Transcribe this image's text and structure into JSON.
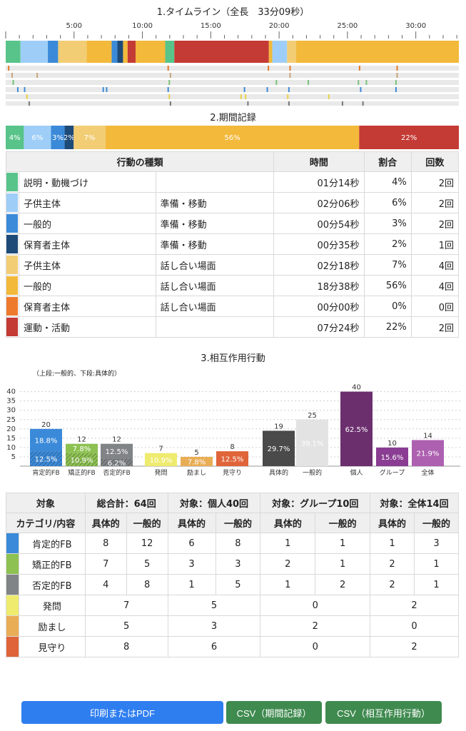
{
  "timeline": {
    "title": "1.タイムライン（全長　33分09秒）",
    "tick_labels": [
      "5:00",
      "10:00",
      "15:00",
      "20:00",
      "25:00",
      "30:00"
    ],
    "total_seconds": 1989,
    "segments": [
      {
        "start": 0,
        "end": 65,
        "color": "#58c48a"
      },
      {
        "start": 65,
        "end": 185,
        "color": "#9ecef7"
      },
      {
        "start": 185,
        "end": 230,
        "color": "#3b8ad9"
      },
      {
        "start": 230,
        "end": 355,
        "color": "#f2cd74"
      },
      {
        "start": 355,
        "end": 465,
        "color": "#f2b93b"
      },
      {
        "start": 465,
        "end": 490,
        "color": "#3b8ad9"
      },
      {
        "start": 490,
        "end": 515,
        "color": "#1e4a78"
      },
      {
        "start": 515,
        "end": 535,
        "color": "#f2b93b"
      },
      {
        "start": 535,
        "end": 570,
        "color": "#c43a35"
      },
      {
        "start": 570,
        "end": 700,
        "color": "#f2b93b"
      },
      {
        "start": 700,
        "end": 740,
        "color": "#58c48a"
      },
      {
        "start": 740,
        "end": 1155,
        "color": "#c43a35"
      },
      {
        "start": 1155,
        "end": 1170,
        "color": "#f2b93b"
      },
      {
        "start": 1170,
        "end": 1235,
        "color": "#9ecef7"
      },
      {
        "start": 1235,
        "end": 1275,
        "color": "#f2cd74"
      },
      {
        "start": 1275,
        "end": 1989,
        "color": "#f2b93b"
      }
    ],
    "event_rows": [
      {
        "marks": [
          {
            "t": 10,
            "color": "#e07b2a"
          },
          {
            "t": 710,
            "color": "#e07b2a"
          },
          {
            "t": 1150,
            "color": "#e07b2a"
          },
          {
            "t": 1245,
            "color": "#e07b2a"
          },
          {
            "t": 1550,
            "color": "#e07b2a"
          },
          {
            "t": 1715,
            "color": "#e07b2a"
          }
        ]
      },
      {
        "marks": [
          {
            "t": 25,
            "color": "#c8a47a"
          },
          {
            "t": 135,
            "color": "#c8a47a"
          },
          {
            "t": 720,
            "color": "#c8a47a"
          },
          {
            "t": 1245,
            "color": "#c8a47a"
          },
          {
            "t": 1715,
            "color": "#c8a47a"
          }
        ]
      },
      {
        "marks": [
          {
            "t": 30,
            "color": "#7ac27a"
          },
          {
            "t": 715,
            "color": "#7ac27a"
          },
          {
            "t": 1185,
            "color": "#7ac27a"
          },
          {
            "t": 1325,
            "color": "#7ac27a"
          },
          {
            "t": 1545,
            "color": "#7ac27a"
          },
          {
            "t": 1580,
            "color": "#7ac27a"
          },
          {
            "t": 1710,
            "color": "#7ac27a"
          }
        ]
      },
      {
        "marks": [
          {
            "t": 50,
            "color": "#3b8ad9"
          },
          {
            "t": 80,
            "color": "#3b8ad9"
          },
          {
            "t": 425,
            "color": "#3b8ad9"
          },
          {
            "t": 440,
            "color": "#3b8ad9"
          },
          {
            "t": 710,
            "color": "#3b8ad9"
          },
          {
            "t": 1045,
            "color": "#3b8ad9"
          },
          {
            "t": 1145,
            "color": "#3b8ad9"
          },
          {
            "t": 1240,
            "color": "#3b8ad9"
          },
          {
            "t": 1555,
            "color": "#3b8ad9"
          },
          {
            "t": 1710,
            "color": "#3b8ad9"
          }
        ]
      },
      {
        "marks": [
          {
            "t": 90,
            "color": "#e8d04a"
          },
          {
            "t": 715,
            "color": "#e8d04a"
          },
          {
            "t": 1030,
            "color": "#e8d04a"
          },
          {
            "t": 1050,
            "color": "#e8d04a"
          },
          {
            "t": 1235,
            "color": "#e8d04a"
          },
          {
            "t": 1415,
            "color": "#e8d04a"
          }
        ]
      },
      {
        "marks": [
          {
            "t": 100,
            "color": "#777777"
          },
          {
            "t": 720,
            "color": "#777777"
          },
          {
            "t": 1060,
            "color": "#777777"
          },
          {
            "t": 1240,
            "color": "#777777"
          },
          {
            "t": 1475,
            "color": "#777777"
          },
          {
            "t": 1565,
            "color": "#777777"
          }
        ]
      }
    ]
  },
  "period": {
    "title": "2.期間記録",
    "bar": [
      {
        "pct": 4,
        "label": "4%",
        "color": "#58c48a"
      },
      {
        "pct": 6,
        "label": "6%",
        "color": "#9ecef7"
      },
      {
        "pct": 3,
        "label": "3%",
        "color": "#3b8ad9"
      },
      {
        "pct": 2,
        "label": "2%",
        "color": "#1e4a78"
      },
      {
        "pct": 7,
        "label": "7%",
        "color": "#f2cd74"
      },
      {
        "pct": 56,
        "label": "56%",
        "color": "#f2b93b"
      },
      {
        "pct": 0,
        "label": "",
        "color": "#ee7a2e"
      },
      {
        "pct": 22,
        "label": "22%",
        "color": "#c43a35"
      }
    ],
    "headers": {
      "type": "行動の種類",
      "time": "時間",
      "ratio": "割合",
      "count": "回数"
    },
    "rows": [
      {
        "color": "#58c48a",
        "name": "説明・動機づけ",
        "scene": "",
        "time": "01分14秒",
        "ratio": "4%",
        "count": "2回"
      },
      {
        "color": "#9ecef7",
        "name": "子供主体",
        "scene": "準備・移動",
        "time": "02分06秒",
        "ratio": "6%",
        "count": "2回"
      },
      {
        "color": "#3b8ad9",
        "name": "一般的",
        "scene": "準備・移動",
        "time": "00分54秒",
        "ratio": "3%",
        "count": "2回"
      },
      {
        "color": "#1e4a78",
        "name": "保育者主体",
        "scene": "準備・移動",
        "time": "00分35秒",
        "ratio": "2%",
        "count": "1回"
      },
      {
        "color": "#f2cd74",
        "name": "子供主体",
        "scene": "話し合い場面",
        "time": "02分18秒",
        "ratio": "7%",
        "count": "4回"
      },
      {
        "color": "#f2b93b",
        "name": "一般的",
        "scene": "話し合い場面",
        "time": "18分38秒",
        "ratio": "56%",
        "count": "4回"
      },
      {
        "color": "#ee7a2e",
        "name": "保育者主体",
        "scene": "話し合い場面",
        "time": "00分00秒",
        "ratio": "0%",
        "count": "0回"
      },
      {
        "color": "#c43a35",
        "name": "運動・活動",
        "scene": "",
        "time": "07分24秒",
        "ratio": "22%",
        "count": "2回"
      }
    ]
  },
  "interaction": {
    "title": "3.相互作用行動",
    "note": "（上段:一般的、下段:具体的）"
  },
  "chart_data": {
    "type": "bar",
    "ylim": [
      0,
      40
    ],
    "yticks": [
      5,
      10,
      15,
      20,
      25,
      30,
      35,
      40
    ],
    "categories": [
      "肯定的FB",
      "矯正的FB",
      "否定的FB",
      "発問",
      "励まし",
      "見守り",
      "具体的",
      "一般的",
      "個人",
      "グループ",
      "全体"
    ],
    "series": [
      {
        "values": [
          20,
          12,
          12,
          7,
          5,
          8,
          19,
          25,
          40,
          10,
          14
        ]
      }
    ],
    "bars": [
      {
        "cat": "肯定的FB",
        "total": 20,
        "color": "#3b8ad9",
        "stack": {
          "bottom": 8,
          "top": 12,
          "bottom_label": "12.5%",
          "top_label": "18.8%"
        }
      },
      {
        "cat": "矯正的FB",
        "total": 12,
        "color": "#8dc152",
        "stack": {
          "bottom": 7,
          "top": 5,
          "bottom_label": "10.9%",
          "top_label": "7.8%"
        }
      },
      {
        "cat": "否定的FB",
        "total": 12,
        "color": "#808487",
        "stack": {
          "bottom": 4,
          "top": 8,
          "bottom_label": "6.2%",
          "top_label": "12.5%"
        }
      },
      {
        "cat": "発問",
        "total": 7,
        "color": "#eeeb6f",
        "label": "10.9%"
      },
      {
        "cat": "励まし",
        "total": 5,
        "color": "#e9ad55",
        "label": "7.8%"
      },
      {
        "cat": "見守り",
        "total": 8,
        "color": "#e0643a",
        "label": "12.5%"
      },
      {
        "cat": "具体的",
        "total": 19,
        "color": "#4a4a4a",
        "label": "29.7%"
      },
      {
        "cat": "一般的",
        "total": 25,
        "color": "#e3e3e3",
        "label": "39.1%"
      },
      {
        "cat": "個人",
        "total": 40,
        "color": "#6c2f6e",
        "label": "62.5%"
      },
      {
        "cat": "グループ",
        "total": 10,
        "color": "#8a3d92",
        "label": "15.6%"
      },
      {
        "cat": "全体",
        "total": 14,
        "color": "#ad60b0",
        "label": "21.9%"
      }
    ]
  },
  "summary": {
    "headers": [
      "対象",
      "総合計：64回",
      "対象：個人40回",
      "対象：グループ10回",
      "対象：全体14回"
    ],
    "subheaders": [
      "カテゴリ/内容",
      "具体的",
      "一般的",
      "具体的",
      "一般的",
      "具体的",
      "一般的",
      "具体的",
      "一般的"
    ],
    "split_rows": [
      {
        "color": "#3b8ad9",
        "label": "肯定的FB",
        "values": [
          "8",
          "12",
          "6",
          "8",
          "1",
          "1",
          "1",
          "3"
        ]
      },
      {
        "color": "#8dc152",
        "label": "矯正的FB",
        "values": [
          "7",
          "5",
          "3",
          "3",
          "2",
          "1",
          "2",
          "1"
        ]
      },
      {
        "color": "#808487",
        "label": "否定的FB",
        "values": [
          "4",
          "8",
          "1",
          "5",
          "1",
          "2",
          "2",
          "1"
        ]
      }
    ],
    "merged_rows": [
      {
        "color": "#eeeb6f",
        "label": "発問",
        "values": [
          "7",
          "5",
          "0",
          "2"
        ]
      },
      {
        "color": "#e9ad55",
        "label": "励まし",
        "values": [
          "5",
          "3",
          "2",
          "0"
        ]
      },
      {
        "color": "#e0643a",
        "label": "見守り",
        "values": [
          "8",
          "6",
          "0",
          "2"
        ]
      }
    ]
  },
  "buttons": {
    "print": "印刷またはPDF",
    "csv_period": "CSV（期間記録）",
    "csv_interaction": "CSV（相互作用行動）"
  }
}
